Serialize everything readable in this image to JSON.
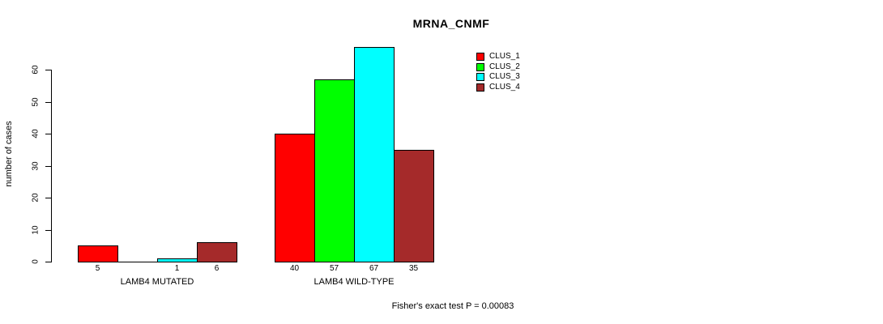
{
  "title": "MRNA_CNMF",
  "y_axis": {
    "label": "number of cases",
    "ticks": [
      0,
      10,
      20,
      30,
      40,
      50,
      60
    ]
  },
  "footer": "Fisher's exact test P = 0.00083",
  "legend": {
    "items": [
      {
        "label": "CLUS_1",
        "color": "#ff0000"
      },
      {
        "label": "CLUS_2",
        "color": "#00ff00"
      },
      {
        "label": "CLUS_3",
        "color": "#00ffff"
      },
      {
        "label": "CLUS_4",
        "color": "#a52a2a"
      }
    ]
  },
  "chart_data": {
    "type": "bar",
    "title": "MRNA_CNMF",
    "ylabel": "number of cases",
    "xlabel": "",
    "ylim": [
      0,
      67
    ],
    "yticks": [
      0,
      10,
      20,
      30,
      40,
      50,
      60
    ],
    "grid": false,
    "legend_position": "top-right",
    "series_names": [
      "CLUS_1",
      "CLUS_2",
      "CLUS_3",
      "CLUS_4"
    ],
    "series_colors": [
      "#ff0000",
      "#00ff00",
      "#00ffff",
      "#a52a2a"
    ],
    "groups": [
      {
        "category": "LAMB4 MUTATED",
        "values": [
          5,
          0,
          1,
          6
        ],
        "bar_labels": [
          "5",
          "",
          "1",
          "6"
        ]
      },
      {
        "category": "LAMB4 WILD-TYPE",
        "values": [
          40,
          57,
          67,
          35
        ],
        "bar_labels": [
          "40",
          "57",
          "67",
          "35"
        ]
      }
    ],
    "annotation": "Fisher's exact test P = 0.00083"
  }
}
